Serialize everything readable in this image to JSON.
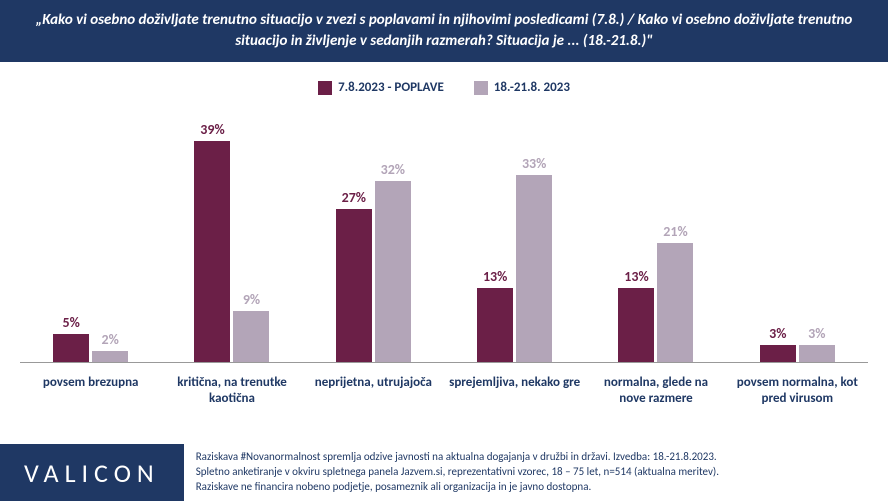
{
  "title": "„Kako vi osebno doživljate trenutno situacijo v zvezi s poplavami in njihovimi posledicami (7.8.) / Kako vi osebno doživljate trenutno situacijo in življenje v sedanjih razmerah? Situacija je ... (18.-21.8.)\"",
  "colors": {
    "title_bg": "#1f3864",
    "series1": "#6b1f47",
    "series2": "#b3a5b8",
    "text": "#1f3864"
  },
  "legend": {
    "series1": "7.8.2023 - POPLAVE",
    "series2": "18.-21.8. 2023"
  },
  "chart": {
    "type": "bar",
    "max": 45,
    "categories": [
      "povsem brezupna",
      "kritična, na trenutke kaotična",
      "neprijetna, utrujajoča",
      "sprejemljiva, nekako gre",
      "normalna, glede na nove razmere",
      "povsem normalna, kot pred virusom"
    ],
    "series1": [
      5,
      39,
      27,
      13,
      13,
      3
    ],
    "series2": [
      2,
      9,
      32,
      33,
      21,
      3
    ],
    "labels1": [
      "5%",
      "39%",
      "27%",
      "13%",
      "13%",
      "3%"
    ],
    "labels2": [
      "2%",
      "9%",
      "32%",
      "33%",
      "21%",
      "3%"
    ]
  },
  "logo": "VALICON",
  "footnote": {
    "line1": "Raziskava #Novanormalnost spremlja odzive javnosti na aktualna dogajanja v družbi in državi. Izvedba: 18.-21.8.2023.",
    "line2": "Spletno anketiranje v okviru spletnega panela Jazvem.si, reprezentativni vzorec, 18 – 75 let, n=514 (aktualna meritev).",
    "line3": "Raziskave ne financira nobeno podjetje, posameznik ali organizacija in je javno dostopna."
  }
}
